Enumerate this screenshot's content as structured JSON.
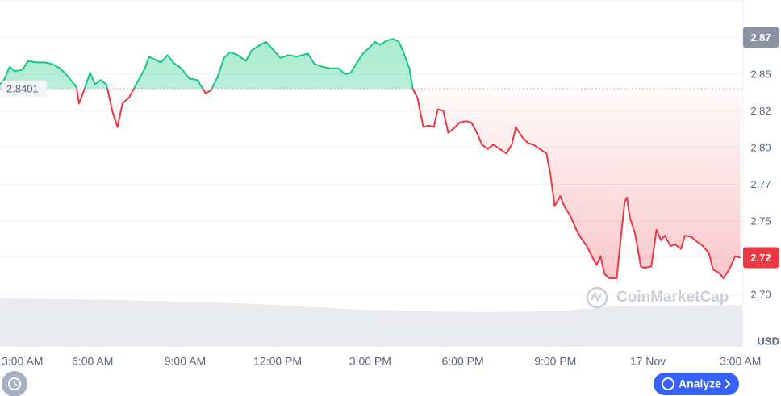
{
  "chart_data": {
    "type": "line",
    "x": [
      0,
      0.13,
      0.31,
      0.47,
      0.73,
      0.91,
      1.17,
      1.43,
      1.69,
      1.95,
      2.22,
      2.48,
      2.56,
      2.74,
      2.92,
      3.08,
      3.26,
      3.45,
      3.65,
      3.81,
      3.97,
      4.18,
      4.31,
      4.49,
      4.7,
      4.83,
      5.01,
      5.22,
      5.43,
      5.61,
      5.87,
      6.14,
      6.4,
      6.66,
      6.84,
      7.05,
      7.26,
      7.45,
      7.71,
      7.97,
      8.15,
      8.36,
      8.62,
      8.88,
      9.09,
      9.35,
      9.62,
      9.8,
      9.98,
      10.19,
      10.45,
      10.71,
      10.97,
      11.18,
      11.37,
      11.55,
      11.76,
      11.97,
      12.15,
      12.33,
      12.54,
      12.75,
      12.93,
      13.06,
      13.27,
      13.38,
      13.53,
      13.72,
      13.9,
      14.06,
      14.19,
      14.37,
      14.53,
      14.71,
      14.9,
      15.11,
      15.28,
      15.46,
      15.62,
      15.81,
      15.99,
      16.2,
      16.41,
      16.59,
      16.72,
      16.93,
      17.12,
      17.29,
      17.5,
      17.71,
      17.84,
      17.98,
      18.16,
      18.29,
      18.5,
      18.68,
      18.81,
      19.02,
      19.21,
      19.34,
      19.47,
      19.59,
      19.75,
      19.99,
      20.11,
      20.25,
      20.32,
      20.42,
      20.59,
      20.77,
      20.89,
      21.11,
      21.28,
      21.42,
      21.55,
      21.73,
      21.89,
      22.07,
      22.2,
      22.42,
      22.59,
      22.78,
      22.98,
      23.11,
      23.29,
      23.45,
      23.64,
      23.83,
      24.0
    ],
    "values": [
      2.843,
      2.846,
      2.855,
      2.852,
      2.853,
      2.859,
      2.858,
      2.858,
      2.857,
      2.854,
      2.848,
      2.841,
      2.83,
      2.84,
      2.851,
      2.843,
      2.846,
      2.843,
      2.824,
      2.814,
      2.83,
      2.834,
      2.839,
      2.846,
      2.854,
      2.862,
      2.86,
      2.858,
      2.863,
      2.858,
      2.854,
      2.847,
      2.846,
      2.837,
      2.839,
      2.848,
      2.861,
      2.865,
      2.863,
      2.859,
      2.866,
      2.869,
      2.872,
      2.866,
      2.861,
      2.863,
      2.862,
      2.863,
      2.864,
      2.857,
      2.855,
      2.854,
      2.854,
      2.85,
      2.851,
      2.857,
      2.864,
      2.868,
      2.872,
      2.87,
      2.873,
      2.874,
      2.872,
      2.866,
      2.854,
      2.84,
      2.834,
      2.814,
      2.815,
      2.814,
      2.826,
      2.825,
      2.81,
      2.813,
      2.817,
      2.818,
      2.817,
      2.81,
      2.802,
      2.799,
      2.802,
      2.799,
      2.796,
      2.802,
      2.814,
      2.807,
      2.803,
      2.802,
      2.799,
      2.796,
      2.782,
      2.76,
      2.767,
      2.76,
      2.753,
      2.744,
      2.739,
      2.733,
      2.725,
      2.72,
      2.726,
      2.714,
      2.711,
      2.711,
      2.736,
      2.763,
      2.766,
      2.752,
      2.741,
      2.719,
      2.718,
      2.719,
      2.744,
      2.737,
      2.74,
      2.733,
      2.734,
      2.731,
      2.74,
      2.739,
      2.736,
      2.733,
      2.728,
      2.717,
      2.715,
      2.711,
      2.717,
      2.726,
      2.725
    ],
    "baseline": 2.8401,
    "up_color": "#16c784",
    "down_color": "#ea3943",
    "xlim": [
      0,
      24.06
    ],
    "ylim": [
      2.6643,
      2.9005
    ],
    "xticks": [
      {
        "value": 0,
        "label": "3:00 AM"
      },
      {
        "value": 3,
        "label": "6:00 AM"
      },
      {
        "value": 6,
        "label": "9:00 AM"
      },
      {
        "value": 9,
        "label": "12:00 PM"
      },
      {
        "value": 12,
        "label": "3:00 PM"
      },
      {
        "value": 15,
        "label": "6:00 PM"
      },
      {
        "value": 18,
        "label": "9:00 PM"
      },
      {
        "value": 21,
        "label": "17 Nov"
      },
      {
        "value": 24,
        "label": "3:00 AM"
      }
    ],
    "yticks": [
      {
        "value": 2.7,
        "label": "2.70"
      },
      {
        "value": 2.725,
        "label": "2.72"
      },
      2.75,
      {
        "value": 2.775,
        "label": "2.77"
      },
      {
        "value": 2.8,
        "label": "2.80"
      },
      {
        "value": 2.825,
        "label": "2.82"
      },
      2.85,
      {
        "value": 2.875,
        "label": "2.87"
      }
    ],
    "grid": true,
    "currency": "USD",
    "watermark": "CoinMarketCap"
  },
  "buttons": {
    "analyze": "Analyze"
  }
}
